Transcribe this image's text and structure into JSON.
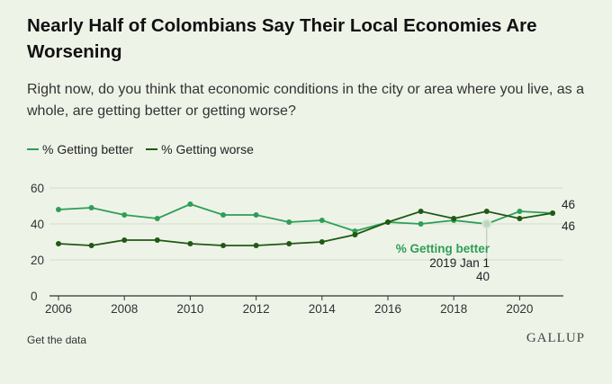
{
  "title": "Nearly Half of Colombians Say Their Local Economies Are Worsening",
  "subtitle": "Right now, do you think that economic conditions in the city or area where you live, as a whole, are getting better or getting worse?",
  "footer": {
    "link_label": "Get the data",
    "brand": "GALLUP"
  },
  "colors": {
    "better": "#2e9e57",
    "worse": "#1f5a12",
    "grid": "#d4dcc9",
    "axis": "#333333"
  },
  "chart_data": {
    "type": "line",
    "x": [
      2006,
      2007,
      2008,
      2009,
      2010,
      2011,
      2012,
      2013,
      2014,
      2015,
      2016,
      2017,
      2018,
      2019,
      2020,
      2021
    ],
    "series": [
      {
        "name": "% Getting better",
        "values": [
          48,
          49,
          45,
          43,
          51,
          45,
          45,
          41,
          42,
          36,
          41,
          40,
          42,
          40,
          47,
          46
        ]
      },
      {
        "name": "% Getting worse",
        "values": [
          29,
          28,
          31,
          31,
          29,
          28,
          28,
          29,
          30,
          34,
          41,
          47,
          43,
          47,
          43,
          46
        ]
      }
    ],
    "xticks": [
      "2006",
      "2008",
      "2010",
      "2012",
      "2014",
      "2016",
      "2018",
      "2020"
    ],
    "yticks": [
      "0",
      "20",
      "40",
      "60"
    ],
    "ylim": [
      0,
      60
    ],
    "end_labels": {
      "better": "46",
      "worse": "46"
    },
    "tooltip": {
      "series_label": "% Getting better",
      "date_label": "2019 Jan 1",
      "value_label": "40"
    }
  }
}
